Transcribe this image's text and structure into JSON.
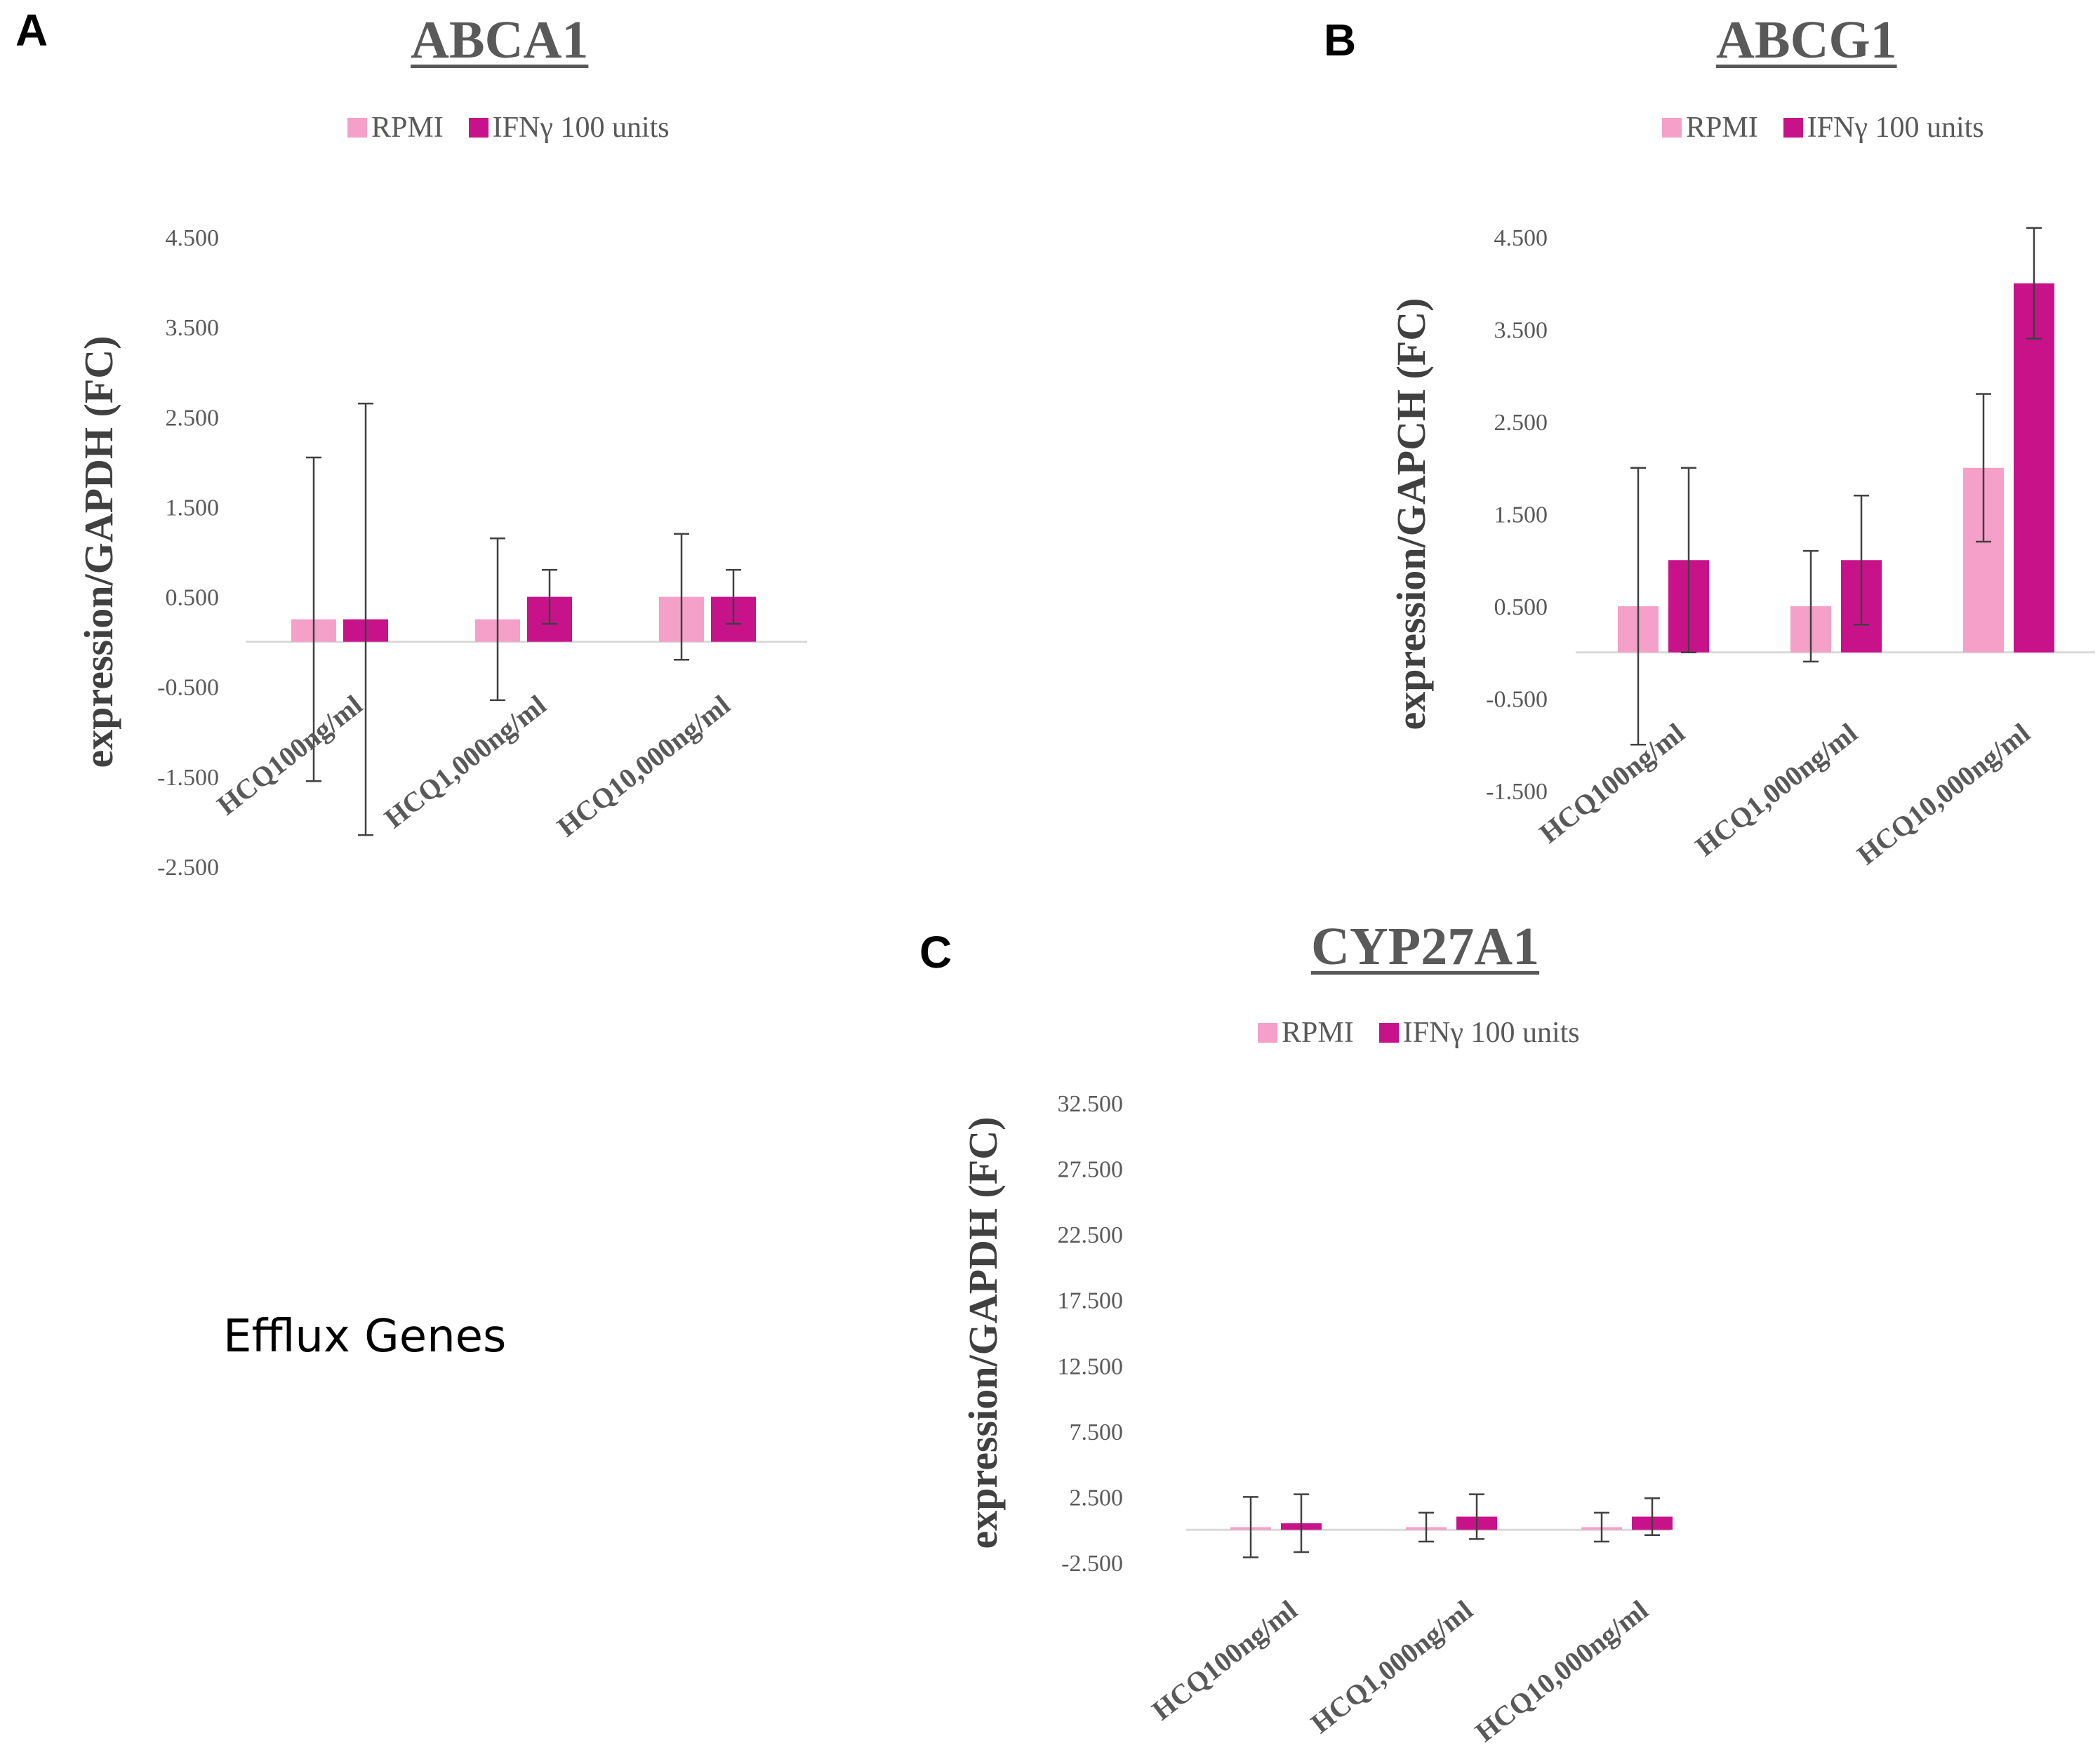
{
  "side_label": "Efflux Genes",
  "colors": {
    "rpmi": "#f4a0c8",
    "ifn": "#c8128a",
    "axis": "#d9d9d9",
    "error": "#404040",
    "tick": "#595959"
  },
  "panels": [
    {
      "letter": "A",
      "title": "ABCA1",
      "legend": [
        "RPMI",
        "IFNγ 100 units"
      ]
    },
    {
      "letter": "B",
      "title": "ABCG1",
      "legend": [
        "RPMI",
        "IFNγ 100 units"
      ]
    },
    {
      "letter": "C",
      "title": "CYP27A1",
      "legend": [
        "RPMI",
        "IFNγ 100 units"
      ]
    }
  ],
  "chart_data": [
    {
      "type": "bar",
      "title": "ABCA1",
      "ylabel": "expression/GAPDH (FC)",
      "categories": [
        "HCQ100ng/ml",
        "HCQ1,000ng/ml",
        "HCQ10,000ng/ml"
      ],
      "yticks": [
        4.5,
        3.5,
        2.5,
        1.5,
        0.5,
        -0.5,
        -1.5,
        -2.5
      ],
      "tick_labels": [
        "4.500",
        "3.500",
        "2.500",
        "1.500",
        "0.500",
        "-0.500",
        "-1.500",
        "-2.500"
      ],
      "ylim": [
        -2.5,
        4.5
      ],
      "series": [
        {
          "name": "RPMI",
          "values": [
            0.25,
            0.25,
            0.5
          ],
          "errors": [
            1.8,
            0.9,
            0.7
          ]
        },
        {
          "name": "IFNγ 100 units",
          "values": [
            0.25,
            0.5,
            0.5
          ],
          "errors": [
            2.4,
            0.3,
            0.3
          ]
        }
      ]
    },
    {
      "type": "bar",
      "title": "ABCG1",
      "ylabel": "expression/GAPCH (FC)",
      "categories": [
        "HCQ100ng/ml",
        "HCQ1,000ng/ml",
        "HCQ10,000ng/ml"
      ],
      "yticks": [
        4.5,
        3.5,
        2.5,
        1.5,
        0.5,
        -0.5,
        -1.5
      ],
      "tick_labels": [
        "4.500",
        "3.500",
        "2.500",
        "1.500",
        "0.500",
        "-0.500",
        "-1.500"
      ],
      "ylim": [
        -1.5,
        4.5
      ],
      "series": [
        {
          "name": "RPMI",
          "values": [
            0.5,
            0.5,
            2.0
          ],
          "errors": [
            1.5,
            0.6,
            0.8
          ]
        },
        {
          "name": "IFNγ 100 units",
          "values": [
            1.0,
            1.0,
            4.0
          ],
          "errors": [
            1.0,
            0.7,
            0.6
          ]
        }
      ]
    },
    {
      "type": "bar",
      "title": "CYP27A1",
      "ylabel": "expression/GAPDH (FC)",
      "categories": [
        "HCQ100ng/ml",
        "HCQ1,000ng/ml",
        "HCQ10,000ng/ml"
      ],
      "yticks": [
        32.5,
        27.5,
        22.5,
        17.5,
        12.5,
        7.5,
        2.5,
        -2.5
      ],
      "tick_labels": [
        "32.500",
        "27.500",
        "22.500",
        "17.500",
        "12.500",
        "7.500",
        "2.500",
        "-2.500"
      ],
      "ylim": [
        -2.5,
        32.5
      ],
      "series": [
        {
          "name": "RPMI",
          "values": [
            0.2,
            0.2,
            0.2
          ],
          "errors": [
            2.3,
            1.1,
            1.1
          ]
        },
        {
          "name": "IFNγ 100 units",
          "values": [
            0.5,
            1.0,
            1.0
          ],
          "errors": [
            2.2,
            1.7,
            1.4
          ]
        }
      ]
    }
  ]
}
